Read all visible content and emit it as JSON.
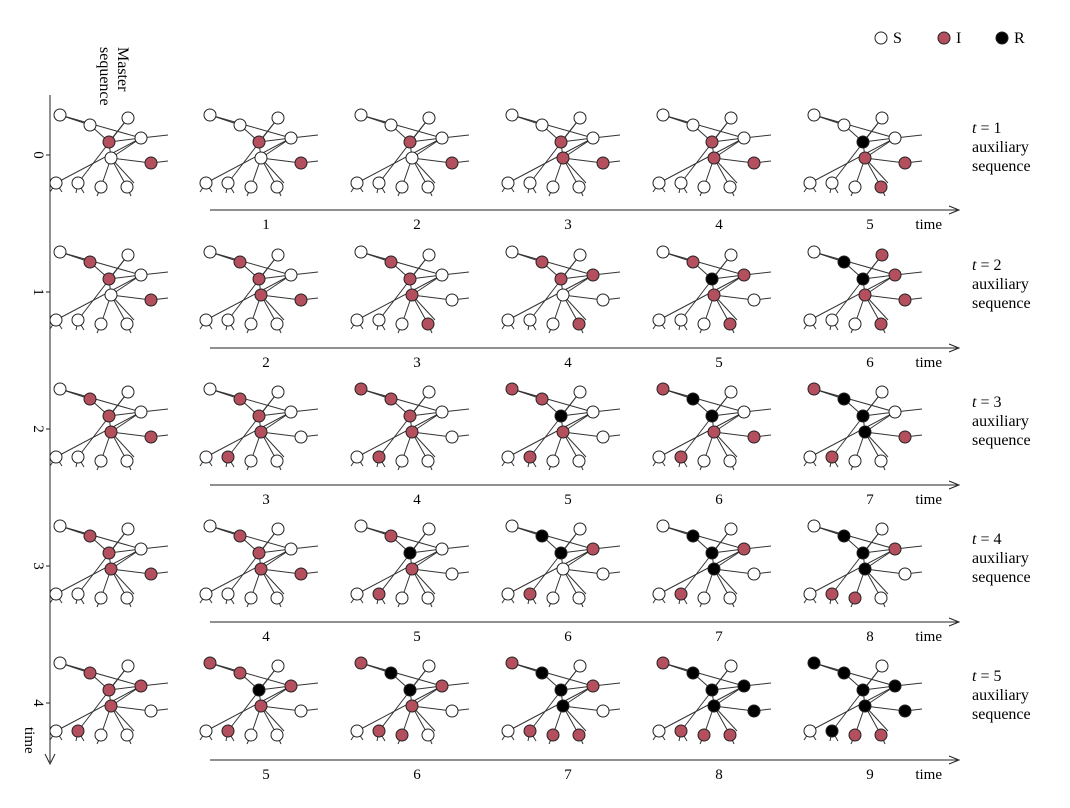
{
  "colors": {
    "S": "#ffffff",
    "I": "#b4505e",
    "R": "#000000",
    "edge": "#333333",
    "outline": "#222222"
  },
  "legend": [
    {
      "state": "S",
      "label": "S"
    },
    {
      "state": "I",
      "label": "I"
    },
    {
      "state": "R",
      "label": "R"
    }
  ],
  "master_label": [
    "Master",
    "sequence"
  ],
  "master_axis_label": "time",
  "time_axis_label": "time",
  "aux_label_prefix": "t",
  "aux_label_lines": [
    "auxiliary",
    "sequence"
  ],
  "network": {
    "node_ids": [
      "n0",
      "n1",
      "n2",
      "n3",
      "n4",
      "n5",
      "n6",
      "n7",
      "n8",
      "n9",
      "n10"
    ],
    "edges": [
      [
        "n1",
        "n2"
      ],
      [
        "n2",
        "n3"
      ],
      [
        "n2",
        "n4"
      ],
      [
        "n2",
        "n5"
      ],
      [
        "n3",
        "n9"
      ],
      [
        "n4",
        "n5"
      ],
      [
        "n5",
        "n6"
      ],
      [
        "n5",
        "n7"
      ],
      [
        "n5",
        "n8"
      ],
      [
        "n1",
        "n0"
      ],
      [
        "n4",
        "n10"
      ],
      [
        "n4",
        "n0"
      ]
    ]
  },
  "rows": [
    {
      "t": "1",
      "master_tick": "0",
      "master": "SSISSSSSISS",
      "aux_ticks": [
        "1",
        "2",
        "3",
        "4",
        "5"
      ],
      "aux": [
        "SSISSSSSISS",
        "SSISSSSSISS",
        "SSISSISSISS",
        "SSISSISSISS",
        "SSRSSISIISS"
      ]
    },
    {
      "t": "2",
      "master_tick": "1",
      "master": "SIISSSSSISS",
      "aux_ticks": [
        "2",
        "3",
        "4",
        "5",
        "6"
      ],
      "aux": [
        "SIISSISSISS",
        "SIISSISISSS",
        "SIISISSISSS",
        "SIRSIISISSS",
        "SRRIIISIISS"
      ]
    },
    {
      "t": "3",
      "master_tick": "2",
      "master": "SIISSISSISS",
      "aux_ticks": [
        "3",
        "4",
        "5",
        "6",
        "7"
      ],
      "aux": [
        "SIISSISSSIS",
        "IIISSISSSIS",
        "IIRSSISSSIS",
        "IRRSSISSIIS",
        "IRRSSRSSIIS"
      ]
    },
    {
      "t": "4",
      "master_tick": "3",
      "master": "SIISSISSISS",
      "aux_ticks": [
        "4",
        "5",
        "6",
        "7",
        "8"
      ],
      "aux": [
        "SIISSISSISS",
        "SIRSSISSSIS",
        "SRRSISSSSIS",
        "SRRSIRSSSIS",
        "SRRSIRISSIS"
      ]
    },
    {
      "t": "5",
      "master_tick": "4",
      "master": "SIISIISSSIS",
      "aux_ticks": [
        "5",
        "6",
        "7",
        "8",
        "9"
      ],
      "aux": [
        "IIRSIISSSIS",
        "IRRSIIISSIS",
        "IRRSIRIISIS",
        "IRRSRRIIRIS",
        "RRRSRRIIRRS"
      ]
    }
  ]
}
